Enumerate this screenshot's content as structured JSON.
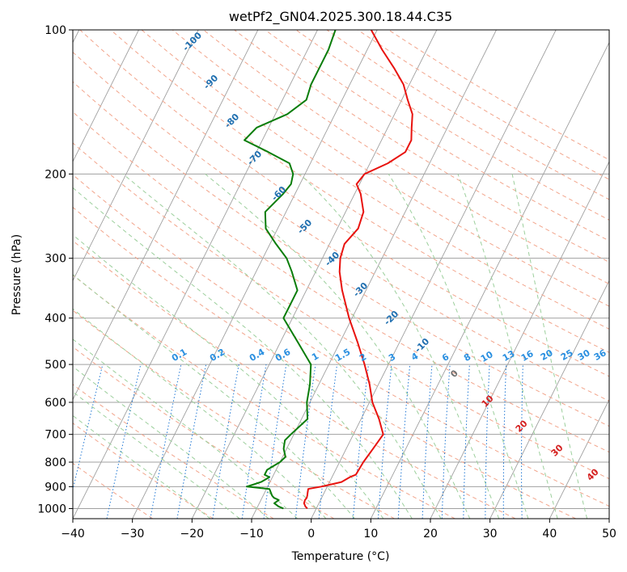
{
  "chart_data": {
    "type": "line",
    "title": "wetPf2_GN04.2025.300.18.44.C35",
    "xlabel": "Temperature (°C)",
    "ylabel": "Pressure (hPa)",
    "xlim": [
      -40,
      50
    ],
    "ylim": [
      1050,
      100
    ],
    "x_ticks": [
      -40,
      -30,
      -20,
      -10,
      0,
      10,
      20,
      30,
      40,
      50
    ],
    "y_ticks": [
      1000,
      900,
      800,
      700,
      600,
      500,
      400,
      300,
      200,
      100
    ],
    "y_tick_labels": [
      "1000",
      "900",
      "800",
      "700",
      "600",
      "500",
      "400",
      "300",
      "200",
      "100"
    ],
    "colors": {
      "temperature": "#e8130f",
      "dewpoint": "#0a7d0a",
      "isotherm": "#a0a0a0",
      "dry_adiabat": "#f2a58c",
      "moist_adiabat": "#9ccf9c",
      "mixing_ratio": "#1f77d4",
      "dry_label": "#1f6fb0",
      "warm_label": "#d42020",
      "zero_label": "#707070"
    },
    "series": [
      {
        "name": "Temperature",
        "pressure": [
          1000,
          990,
          975,
          960,
          950,
          940,
          925,
          910,
          900,
          890,
          880,
          860,
          850,
          800,
          750,
          700,
          650,
          600,
          550,
          500,
          450,
          400,
          350,
          320,
          300,
          280,
          260,
          240,
          220,
          210,
          200,
          190,
          180,
          170,
          160,
          150,
          140,
          130,
          120,
          110,
          100
        ],
        "values": [
          -1.5,
          -2.0,
          -2.5,
          -2.6,
          -2.5,
          -2.6,
          -2.8,
          -3.0,
          -1.0,
          0.5,
          2.0,
          3.0,
          3.8,
          4.0,
          4.5,
          5.0,
          3.0,
          0.5,
          -1.5,
          -4.0,
          -7.0,
          -10.5,
          -14.0,
          -16.0,
          -17.0,
          -17.5,
          -16.5,
          -17.0,
          -19.0,
          -20.5,
          -20.0,
          -17.0,
          -15.0,
          -15.0,
          -16.0,
          -17.0,
          -19.0,
          -21.0,
          -24.0,
          -27.5,
          -31.0
        ]
      },
      {
        "name": "Dewpoint",
        "pressure": [
          1000,
          990,
          975,
          960,
          950,
          940,
          925,
          910,
          900,
          890,
          880,
          860,
          850,
          830,
          800,
          780,
          750,
          720,
          700,
          650,
          600,
          550,
          500,
          450,
          400,
          370,
          350,
          320,
          300,
          280,
          260,
          240,
          220,
          210,
          200,
          190,
          180,
          170,
          160,
          150,
          140,
          130,
          120,
          110,
          100
        ],
        "values": [
          -5.5,
          -6.5,
          -7.5,
          -7.0,
          -8.0,
          -8.5,
          -9.0,
          -9.5,
          -13.5,
          -12.5,
          -11.5,
          -10.5,
          -11.5,
          -11.5,
          -10.0,
          -9.5,
          -10.5,
          -11.0,
          -10.5,
          -9.0,
          -10.5,
          -11.5,
          -13.0,
          -17.0,
          -21.5,
          -21.5,
          -21.5,
          -24.0,
          -26.0,
          -29.0,
          -32.0,
          -33.5,
          -32.0,
          -31.5,
          -32.0,
          -33.5,
          -38.0,
          -43.0,
          -42.0,
          -38.0,
          -36.0,
          -36.5,
          -36.5,
          -36.5,
          -37.0
        ]
      }
    ],
    "dry_adiabat_labels": [
      "-100",
      "-90",
      "-80",
      "-70",
      "-60",
      "-50",
      "-40",
      "-30",
      "-20",
      "-10"
    ],
    "mixing_ratio_labels": [
      "0.1",
      "0.2",
      "0.4",
      "0.6",
      "1",
      "1.5",
      "2",
      "3",
      "4",
      "6",
      "8",
      "10",
      "13",
      "16",
      "20",
      "25",
      "30",
      "36"
    ],
    "moist_adiabat_labels": [
      "0",
      "10",
      "20",
      "30",
      "40"
    ]
  }
}
